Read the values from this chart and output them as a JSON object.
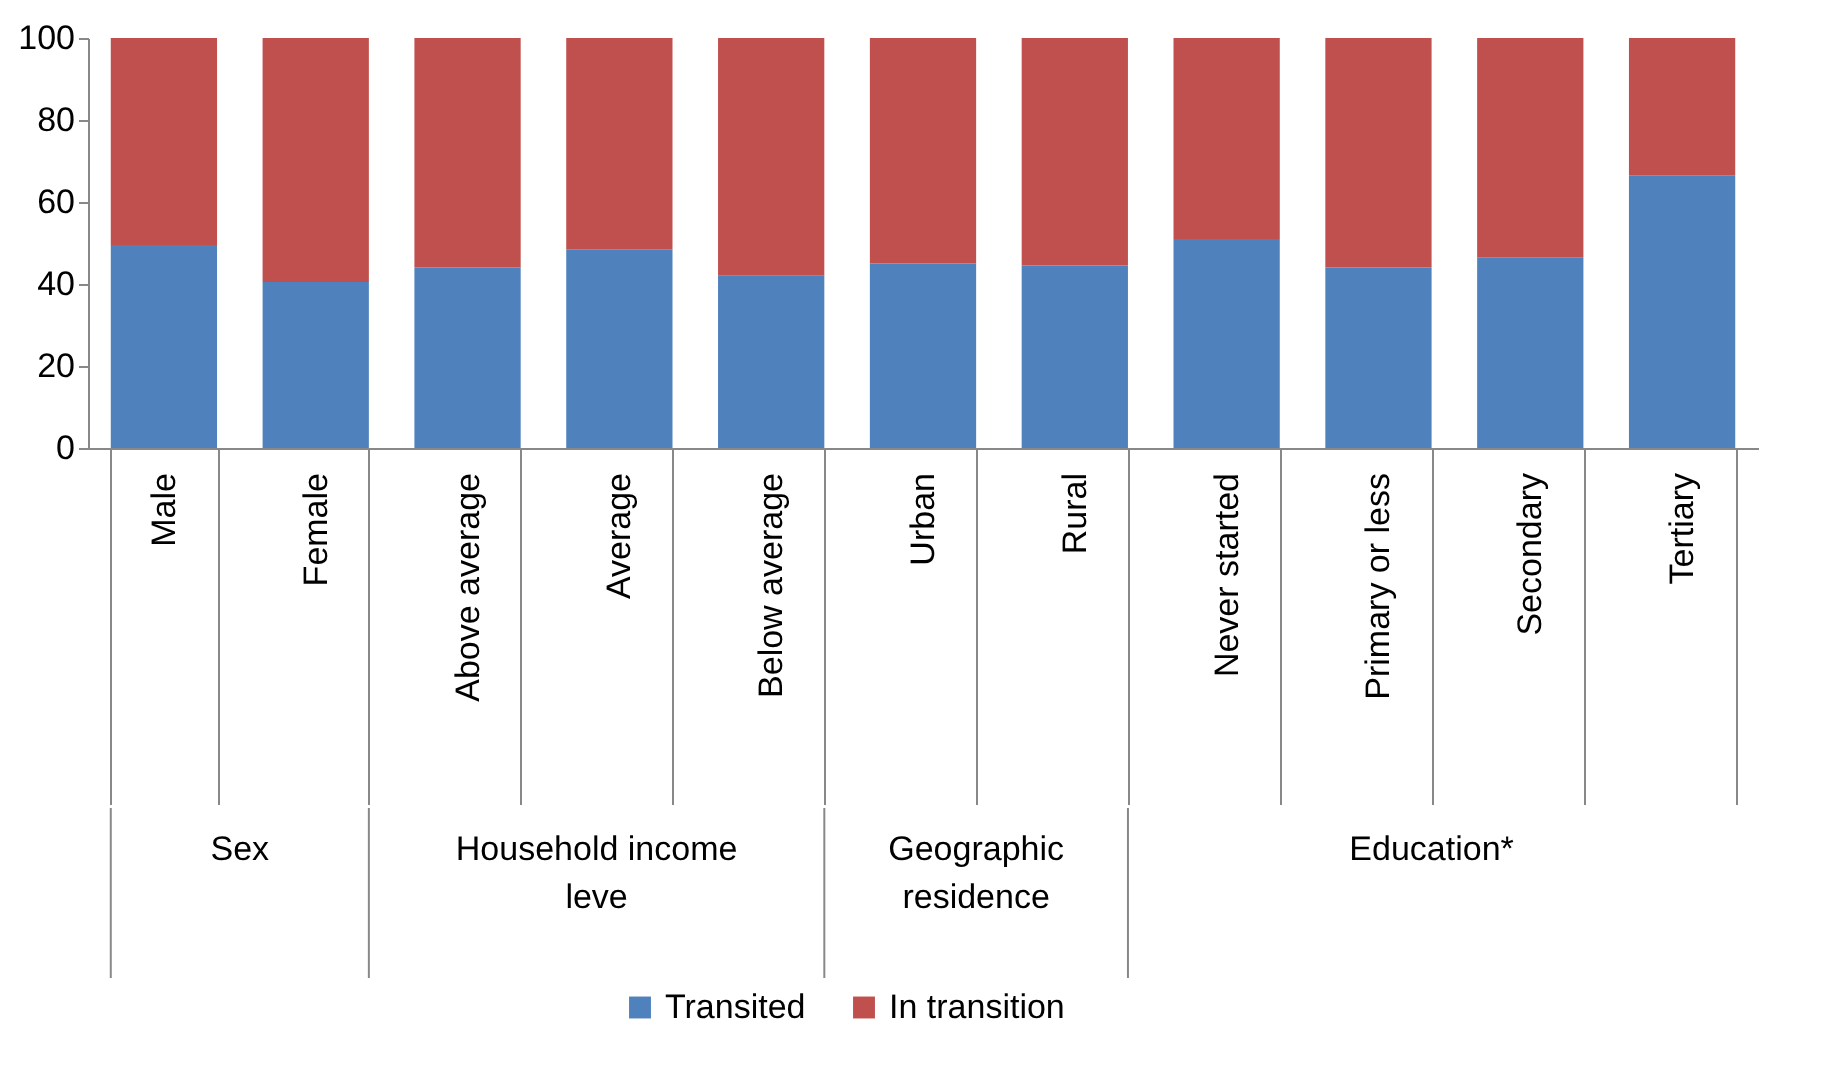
{
  "chart_data": {
    "type": "bar",
    "stacked": true,
    "categories": [
      "Male",
      "Female",
      "Above average",
      "Average",
      "Below average",
      "Urban",
      "Rural",
      "Never started",
      "Primary or less",
      "Secondary",
      "Tertiary"
    ],
    "series": [
      {
        "name": "Transited",
        "color": "#4f81bd",
        "values": [
          49.5,
          40.5,
          44,
          48.5,
          42,
          45,
          44.5,
          51,
          44,
          46.5,
          66.5
        ]
      },
      {
        "name": "In transition",
        "color": "#c0504d",
        "values": [
          50.5,
          59.5,
          56,
          51.5,
          58,
          55,
          55.5,
          49,
          56,
          53.5,
          33.5
        ]
      }
    ],
    "ylim": [
      0,
      100
    ],
    "yticks": [
      0,
      20,
      40,
      60,
      80,
      100
    ],
    "grid": false,
    "legend": "bottom",
    "annotations": [
      "Sex",
      "Household income leve",
      "Geographic residence",
      "Education*"
    ]
  }
}
